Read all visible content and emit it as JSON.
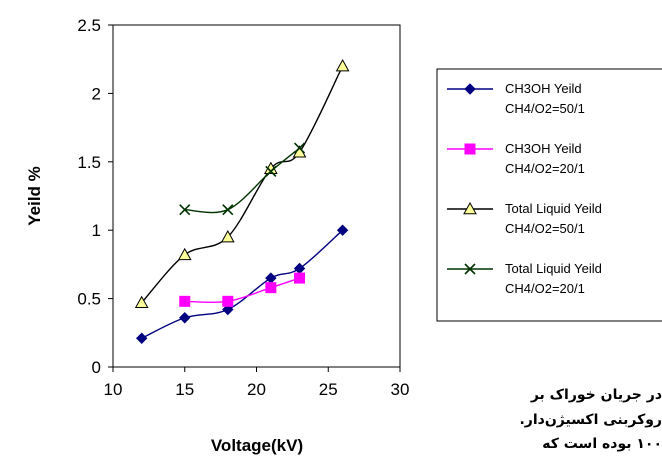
{
  "chart_data": {
    "type": "line",
    "title": "",
    "xlabel": "Voltage(kV)",
    "ylabel": "Yeild %",
    "xlim": [
      10,
      30
    ],
    "ylim": [
      0,
      2.5
    ],
    "x_ticks": [
      "10",
      "15",
      "20",
      "25",
      "30"
    ],
    "y_ticks": [
      "0",
      "0.5",
      "1",
      "1.5",
      "2",
      "2.5"
    ],
    "grid": false,
    "legend_position": "right",
    "series": [
      {
        "name": "CH3OH Yeild",
        "sub": "CH4/O2=50/1",
        "color": "#000080",
        "marker": "diamond",
        "x": [
          12,
          15,
          18,
          21,
          23,
          26
        ],
        "y": [
          0.21,
          0.36,
          0.42,
          0.65,
          0.72,
          1.0
        ]
      },
      {
        "name": "CH3OH Yeild",
        "sub": "CH4/O2=20/1",
        "color": "#ff00ff",
        "marker": "square",
        "x": [
          15,
          18,
          21,
          23
        ],
        "y": [
          0.48,
          0.48,
          0.58,
          0.65
        ]
      },
      {
        "name": "Total Liquid Yeild",
        "sub": "CH4/O2=50/1",
        "color": "#000000",
        "marker": "triangle",
        "marker_fill": "#ffff99",
        "x": [
          12,
          15,
          18,
          21,
          23,
          26
        ],
        "y": [
          0.47,
          0.82,
          0.95,
          1.45,
          1.57,
          2.2
        ]
      },
      {
        "name": "Total Liquid Yeild",
        "sub": "CH4/O2=20/1",
        "color": "#003300",
        "marker": "x",
        "x": [
          15,
          18,
          21,
          23
        ],
        "y": [
          1.15,
          1.15,
          1.43,
          1.6
        ]
      }
    ]
  },
  "page_text": {
    "line1": "در جریان خوراک بر",
    "line2": "روکربنی اکسیژن‌دار.",
    "line3": "۱۰۰ بوده است که"
  }
}
